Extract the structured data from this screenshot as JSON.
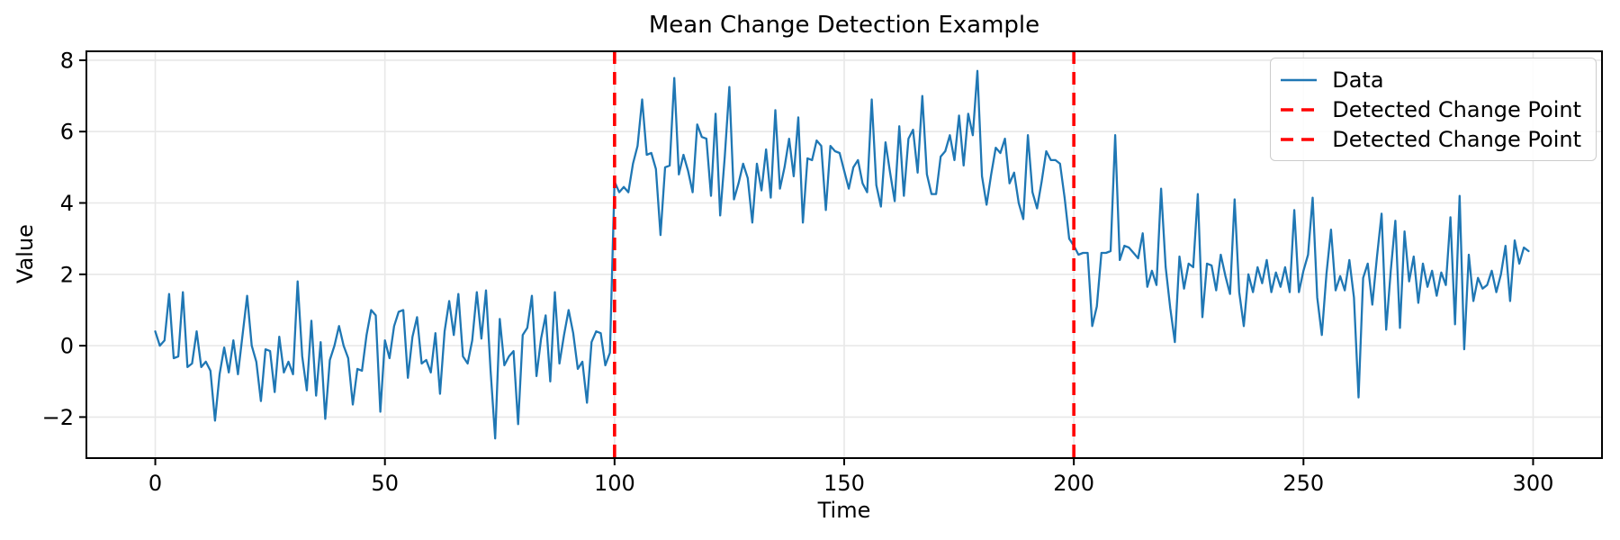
{
  "figure": {
    "title": "Mean Change Detection Example",
    "xlabel": "Time",
    "ylabel": "Value"
  },
  "legend": {
    "entries": [
      {
        "label": "Data",
        "style": "solid",
        "color": "#1f77b4"
      },
      {
        "label": "Detected Change Point",
        "style": "dashed",
        "color": "#ff0000"
      },
      {
        "label": "Detected Change Point",
        "style": "dashed",
        "color": "#ff0000"
      }
    ]
  },
  "colors": {
    "series": "#1f77b4",
    "change_point": "#ff0000",
    "grid": "#e8e8e8",
    "axis": "#000000",
    "background": "#ffffff"
  },
  "chart_data": {
    "type": "line",
    "title": "Mean Change Detection Example",
    "xlabel": "Time",
    "ylabel": "Value",
    "x_start": 0,
    "x_step": 1,
    "n_points": 300,
    "values": [
      0.4,
      0.0,
      0.15,
      1.45,
      -0.35,
      -0.3,
      1.5,
      -0.6,
      -0.5,
      0.4,
      -0.6,
      -0.45,
      -0.7,
      -2.1,
      -0.8,
      -0.05,
      -0.75,
      0.15,
      -0.8,
      0.3,
      1.4,
      0.0,
      -0.45,
      -1.55,
      -0.1,
      -0.15,
      -1.3,
      0.25,
      -0.75,
      -0.45,
      -0.8,
      1.8,
      -0.3,
      -1.25,
      0.7,
      -1.4,
      0.1,
      -2.05,
      -0.4,
      0.0,
      0.55,
      0.0,
      -0.35,
      -1.65,
      -0.65,
      -0.7,
      0.3,
      1.0,
      0.85,
      -1.85,
      0.15,
      -0.35,
      0.55,
      0.95,
      1.0,
      -0.9,
      0.25,
      0.8,
      -0.5,
      -0.4,
      -0.75,
      0.35,
      -1.35,
      0.4,
      1.25,
      0.3,
      1.45,
      -0.3,
      -0.5,
      0.15,
      1.5,
      0.2,
      1.55,
      -0.7,
      -2.6,
      0.75,
      -0.55,
      -0.3,
      -0.15,
      -2.2,
      0.3,
      0.5,
      1.4,
      -0.85,
      0.2,
      0.85,
      -1.0,
      1.5,
      -0.5,
      0.3,
      1.0,
      0.35,
      -0.65,
      -0.45,
      -1.6,
      0.1,
      0.4,
      0.35,
      -0.55,
      -0.2,
      4.6,
      4.3,
      4.45,
      4.3,
      5.1,
      5.6,
      6.9,
      5.35,
      5.4,
      4.95,
      3.1,
      5.0,
      5.05,
      7.5,
      4.8,
      5.35,
      4.9,
      4.3,
      6.2,
      5.85,
      5.8,
      4.2,
      6.5,
      3.65,
      5.3,
      7.25,
      4.1,
      4.55,
      5.1,
      4.7,
      3.45,
      5.1,
      4.35,
      5.5,
      4.15,
      6.6,
      4.4,
      5.0,
      5.8,
      4.75,
      6.4,
      3.45,
      5.25,
      5.2,
      5.75,
      5.6,
      3.8,
      5.6,
      5.45,
      5.4,
      4.9,
      4.4,
      5.0,
      5.2,
      4.55,
      4.3,
      6.9,
      4.5,
      3.9,
      5.7,
      4.85,
      4.05,
      6.15,
      4.2,
      5.8,
      6.05,
      4.85,
      7.0,
      4.8,
      4.25,
      4.25,
      5.3,
      5.45,
      5.9,
      5.2,
      6.45,
      5.05,
      6.5,
      5.9,
      7.7,
      4.75,
      3.95,
      4.8,
      5.55,
      5.4,
      5.8,
      4.55,
      4.85,
      4.0,
      3.55,
      5.9,
      4.3,
      3.85,
      4.6,
      5.45,
      5.2,
      5.2,
      5.1,
      4.15,
      3.0,
      2.8,
      2.55,
      2.6,
      2.6,
      0.55,
      1.1,
      2.6,
      2.6,
      2.65,
      5.9,
      2.4,
      2.8,
      2.75,
      2.6,
      2.45,
      3.15,
      1.65,
      2.1,
      1.7,
      4.4,
      2.2,
      1.05,
      0.1,
      2.5,
      1.6,
      2.3,
      2.2,
      4.25,
      0.8,
      2.3,
      2.25,
      1.55,
      2.55,
      1.95,
      1.45,
      4.1,
      1.5,
      0.55,
      2.0,
      1.5,
      2.2,
      1.75,
      2.4,
      1.5,
      2.05,
      1.65,
      2.2,
      1.5,
      3.8,
      1.5,
      2.1,
      2.55,
      4.15,
      1.35,
      0.3,
      2.0,
      3.25,
      1.55,
      1.95,
      1.55,
      2.4,
      1.35,
      -1.45,
      1.9,
      2.3,
      1.15,
      2.5,
      3.7,
      0.45,
      2.1,
      3.5,
      0.5,
      3.2,
      1.8,
      2.5,
      1.2,
      2.3,
      1.65,
      2.1,
      1.4,
      2.05,
      1.7,
      3.6,
      0.6,
      4.2,
      -0.1,
      2.55,
      1.25,
      1.9,
      1.6,
      1.7,
      2.1,
      1.5,
      2.0,
      2.8,
      1.25,
      2.95,
      2.3,
      2.75,
      2.65
    ],
    "change_points": [
      100,
      200
    ],
    "xlim": [
      -15,
      315
    ],
    "ylim": [
      -3.15,
      8.25
    ],
    "xticks": [
      0,
      50,
      100,
      150,
      200,
      250,
      300
    ],
    "xtick_labels": [
      "0",
      "50",
      "100",
      "150",
      "200",
      "250",
      "300"
    ],
    "yticks": [
      -2,
      0,
      2,
      4,
      6,
      8
    ],
    "ytick_labels": [
      "−2",
      "0",
      "2",
      "4",
      "6",
      "8"
    ],
    "grid": true,
    "legend_position": "upper right"
  }
}
